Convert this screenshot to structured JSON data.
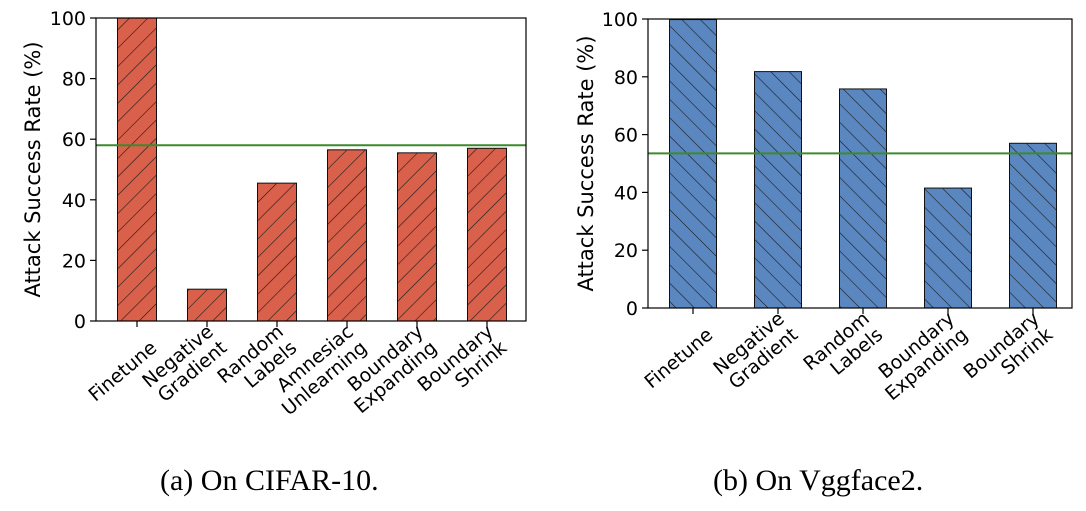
{
  "chart_data": [
    {
      "type": "bar",
      "caption": "(a) On CIFAR-10.",
      "categories": [
        "Finetune",
        "Negative Gradient",
        "Random Labels",
        "Amnesiac Unlearning",
        "Boundary Expanding",
        "Boundary Shrink"
      ],
      "category_lines": [
        [
          "Finetune"
        ],
        [
          "Negative",
          "Gradient"
        ],
        [
          "Random",
          "Labels"
        ],
        [
          "Amnesiac",
          "Unlearning"
        ],
        [
          "Boundary",
          "Expanding"
        ],
        [
          "Boundary",
          "Shrink"
        ]
      ],
      "values": [
        100,
        10.5,
        45.5,
        56.5,
        55.5,
        57.0
      ],
      "reference_line": 58,
      "ylabel": "Attack Success Rate (%)",
      "ylim": [
        0,
        100
      ],
      "yticks": [
        0,
        20,
        40,
        60,
        80,
        100
      ],
      "bar_color": "#d9604a",
      "hatch": "forward-diagonal",
      "line_color": "#3c8a2e"
    },
    {
      "type": "bar",
      "caption": "(b) On Vggface2.",
      "categories": [
        "Finetune",
        "Negative Gradient",
        "Random Labels",
        "Boundary Expanding",
        "Boundary Shrink"
      ],
      "category_lines": [
        [
          "Finetune"
        ],
        [
          "Negative",
          "Gradient"
        ],
        [
          "Random",
          "Labels"
        ],
        [
          "Boundary",
          "Expanding"
        ],
        [
          "Boundary",
          "Shrink"
        ]
      ],
      "values": [
        99.8,
        81.8,
        75.8,
        41.5,
        57.0
      ],
      "reference_line": 53.5,
      "ylabel": "Attack Success Rate (%)",
      "ylim": [
        0,
        100
      ],
      "yticks": [
        0,
        20,
        40,
        60,
        80,
        100
      ],
      "bar_color": "#5b87c1",
      "hatch": "back-diagonal",
      "line_color": "#3c8a2e"
    }
  ]
}
